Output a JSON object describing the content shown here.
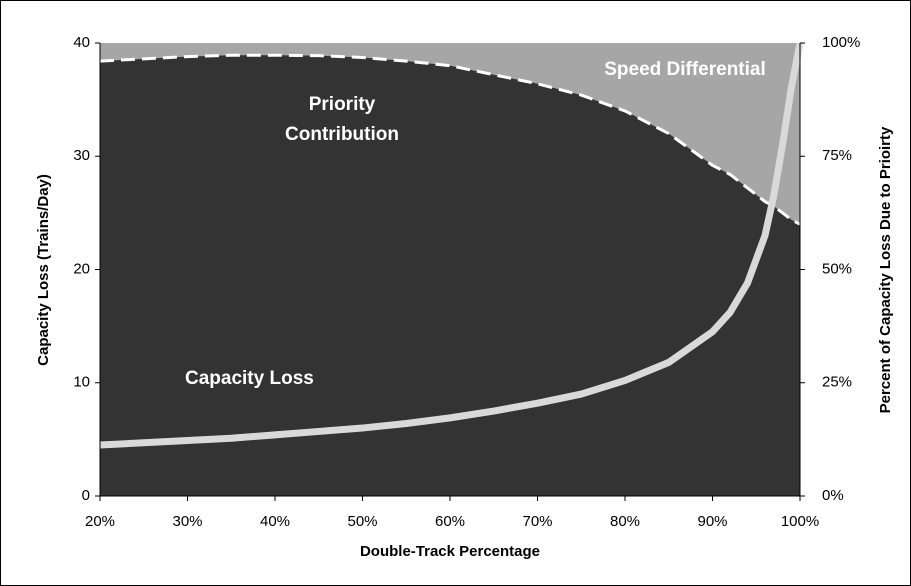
{
  "chart_data": {
    "type": "area",
    "x_label": "Double-Track Percentage",
    "y_label": "Capacity Loss (Trains/Day)",
    "y2_label": "Percent of Capacity Loss Due to Prioirty",
    "annotations": [
      "Speed Differential"
    ],
    "x": [
      20,
      25,
      30,
      35,
      40,
      45,
      50,
      55,
      60,
      65,
      70,
      75,
      80,
      85,
      90,
      92,
      94,
      96,
      97,
      98,
      99,
      100
    ],
    "series": [
      {
        "name": "Priority Contribution",
        "axis": "y2",
        "color": "#333333",
        "values": [
          96,
          96.5,
          97,
          97.3,
          97.3,
          97.2,
          96.8,
          96,
          95,
          93,
          91,
          88.5,
          85,
          80,
          73,
          71,
          68,
          65,
          64,
          62.5,
          61,
          60
        ]
      },
      {
        "name": "Capacity Loss",
        "color": "#d9d9d9",
        "values": [
          4.5,
          4.7,
          4.9,
          5.1,
          5.4,
          5.7,
          6.0,
          6.4,
          6.9,
          7.5,
          8.2,
          9.0,
          10.2,
          11.8,
          14.5,
          16.2,
          18.8,
          23,
          26.5,
          31,
          36,
          40
        ]
      }
    ],
    "xlim": [
      20,
      100
    ],
    "xticks": [
      {
        "value": 20,
        "label": "20%"
      },
      {
        "value": 30,
        "label": "30%"
      },
      {
        "value": 40,
        "label": "40%"
      },
      {
        "value": 50,
        "label": "50%"
      },
      {
        "value": 60,
        "label": "60%"
      },
      {
        "value": 70,
        "label": "70%"
      },
      {
        "value": 80,
        "label": "80%"
      },
      {
        "value": 90,
        "label": "90%"
      },
      {
        "value": 100,
        "label": "100%"
      }
    ],
    "ylim": [
      0,
      40
    ],
    "yticks": [
      0,
      10,
      20,
      30,
      40
    ],
    "y2lim": [
      0,
      100
    ],
    "y2ticks": [
      {
        "value": 0,
        "label": "0%"
      },
      {
        "value": 25,
        "label": "25%"
      },
      {
        "value": 50,
        "label": "50%"
      },
      {
        "value": 75,
        "label": "75%"
      },
      {
        "value": 100,
        "label": "100%"
      }
    ],
    "background_color": "#a6a6a6"
  }
}
